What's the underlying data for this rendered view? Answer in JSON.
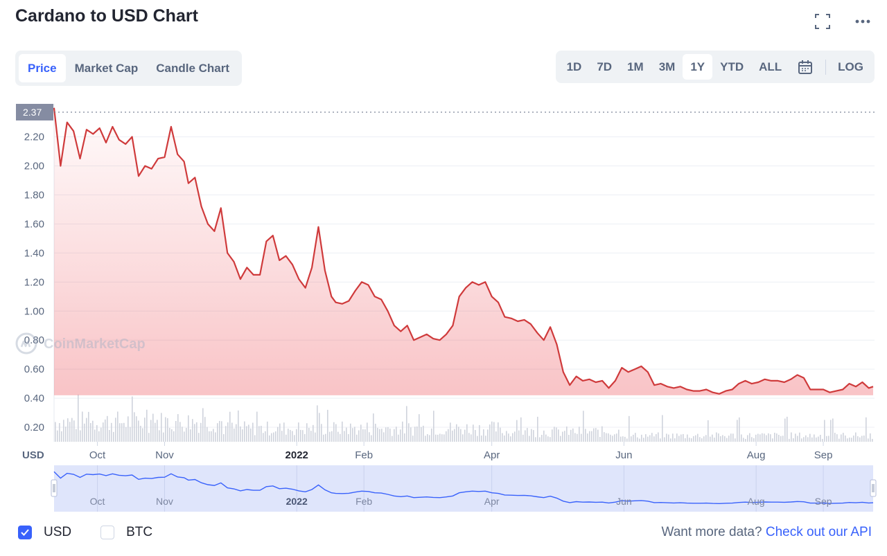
{
  "header": {
    "title": "Cardano to USD Chart"
  },
  "tabs": [
    {
      "label": "Price",
      "active": true
    },
    {
      "label": "Market Cap"
    },
    {
      "label": "Candle Chart"
    }
  ],
  "ranges": [
    {
      "label": "1D"
    },
    {
      "label": "7D"
    },
    {
      "label": "1M"
    },
    {
      "label": "3M"
    },
    {
      "label": "1Y",
      "active": true
    },
    {
      "label": "YTD"
    },
    {
      "label": "ALL"
    }
  ],
  "log_label": "LOG",
  "icons": {
    "fullscreen": "fullscreen-icon",
    "more": "more-icon",
    "calendar": "calendar-icon"
  },
  "colors": {
    "line": "#cf3a3b",
    "fill": "#ea3943",
    "accent": "#3861fb",
    "navigator": "#dde3fb",
    "navigator_line": "#3861fb"
  },
  "watermark": "CoinMarketCap",
  "currency_label": "USD",
  "legend": [
    {
      "label": "USD",
      "checked": true
    },
    {
      "label": "BTC",
      "checked": false
    }
  ],
  "footer": {
    "text": "Want more data?",
    "link": "Check out our API"
  },
  "chart_data": {
    "type": "area",
    "title": "Cardano to USD Chart",
    "ylabel": "USD",
    "ylim": [
      0.1,
      2.37
    ],
    "yticks": [
      0.2,
      0.4,
      0.6,
      0.8,
      1.0,
      1.2,
      1.4,
      1.6,
      1.8,
      2.0,
      2.2
    ],
    "ytick_labels": [
      "0.20",
      "0.40",
      "0.60",
      "0.80",
      "1.00",
      "1.20",
      "1.40",
      "1.60",
      "1.80",
      "2.00",
      "2.20"
    ],
    "current_label": "2.37",
    "xlim": [
      "2021-09-11",
      "2022-09-24"
    ],
    "xticks": [
      {
        "label": "Oct",
        "date": "2021-10-01"
      },
      {
        "label": "Nov",
        "date": "2021-11-01"
      },
      {
        "label": "2022",
        "date": "2022-01-01",
        "bold": true
      },
      {
        "label": "Feb",
        "date": "2022-02-01"
      },
      {
        "label": "Apr",
        "date": "2022-04-01"
      },
      {
        "label": "Jun",
        "date": "2022-06-01"
      },
      {
        "label": "Aug",
        "date": "2022-08-01"
      },
      {
        "label": "Sep",
        "date": "2022-09-01"
      }
    ],
    "grid": true,
    "series": [
      {
        "x": [
          "2021-09-11",
          "2021-09-14",
          "2021-09-17",
          "2021-09-20",
          "2021-09-23",
          "2021-09-26",
          "2021-09-29",
          "2021-10-02",
          "2021-10-05",
          "2021-10-08",
          "2021-10-11",
          "2021-10-14",
          "2021-10-17",
          "2021-10-20",
          "2021-10-23",
          "2021-10-26",
          "2021-10-29",
          "2021-11-01",
          "2021-11-04",
          "2021-11-07",
          "2021-11-10",
          "2021-11-12",
          "2021-11-15",
          "2021-11-18",
          "2021-11-21",
          "2021-11-24",
          "2021-11-27",
          "2021-11-30",
          "2021-12-03",
          "2021-12-06",
          "2021-12-09",
          "2021-12-12",
          "2021-12-15",
          "2021-12-18",
          "2021-12-21",
          "2021-12-24",
          "2021-12-27",
          "2021-12-30",
          "2022-01-02",
          "2022-01-05",
          "2022-01-08",
          "2022-01-11",
          "2022-01-14",
          "2022-01-17",
          "2022-01-19",
          "2022-01-22",
          "2022-01-25",
          "2022-01-28",
          "2022-01-31",
          "2022-02-03",
          "2022-02-06",
          "2022-02-09",
          "2022-02-12",
          "2022-02-15",
          "2022-02-18",
          "2022-02-21",
          "2022-02-24",
          "2022-02-27",
          "2022-03-02",
          "2022-03-05",
          "2022-03-08",
          "2022-03-11",
          "2022-03-14",
          "2022-03-17",
          "2022-03-20",
          "2022-03-23",
          "2022-03-26",
          "2022-03-29",
          "2022-04-01",
          "2022-04-04",
          "2022-04-07",
          "2022-04-10",
          "2022-04-13",
          "2022-04-16",
          "2022-04-19",
          "2022-04-22",
          "2022-04-25",
          "2022-04-28",
          "2022-05-01",
          "2022-05-04",
          "2022-05-07",
          "2022-05-10",
          "2022-05-13",
          "2022-05-16",
          "2022-05-19",
          "2022-05-22",
          "2022-05-25",
          "2022-05-28",
          "2022-05-31",
          "2022-06-03",
          "2022-06-06",
          "2022-06-09",
          "2022-06-12",
          "2022-06-15",
          "2022-06-18",
          "2022-06-21",
          "2022-06-24",
          "2022-06-27",
          "2022-06-30",
          "2022-07-03",
          "2022-07-06",
          "2022-07-09",
          "2022-07-12",
          "2022-07-15",
          "2022-07-18",
          "2022-07-21",
          "2022-07-24",
          "2022-07-27",
          "2022-07-30",
          "2022-08-02",
          "2022-08-05",
          "2022-08-08",
          "2022-08-11",
          "2022-08-14",
          "2022-08-17",
          "2022-08-20",
          "2022-08-23",
          "2022-08-26",
          "2022-08-29",
          "2022-09-01",
          "2022-09-04",
          "2022-09-07",
          "2022-09-10",
          "2022-09-13",
          "2022-09-16",
          "2022-09-19",
          "2022-09-22",
          "2022-09-24"
        ],
        "values": [
          2.4,
          2.0,
          2.3,
          2.24,
          2.05,
          2.25,
          2.22,
          2.26,
          2.16,
          2.27,
          2.18,
          2.15,
          2.2,
          1.93,
          2.0,
          1.98,
          2.05,
          2.06,
          2.27,
          2.08,
          2.03,
          1.88,
          1.92,
          1.72,
          1.6,
          1.55,
          1.71,
          1.4,
          1.34,
          1.22,
          1.3,
          1.25,
          1.25,
          1.48,
          1.52,
          1.35,
          1.38,
          1.32,
          1.22,
          1.16,
          1.3,
          1.58,
          1.28,
          1.1,
          1.06,
          1.05,
          1.07,
          1.14,
          1.2,
          1.18,
          1.1,
          1.08,
          1.0,
          0.9,
          0.86,
          0.9,
          0.8,
          0.82,
          0.84,
          0.81,
          0.8,
          0.84,
          0.9,
          1.1,
          1.16,
          1.2,
          1.18,
          1.2,
          1.1,
          1.06,
          0.96,
          0.95,
          0.93,
          0.94,
          0.91,
          0.85,
          0.8,
          0.89,
          0.77,
          0.58,
          0.49,
          0.55,
          0.52,
          0.53,
          0.51,
          0.52,
          0.47,
          0.52,
          0.61,
          0.58,
          0.6,
          0.62,
          0.58,
          0.49,
          0.5,
          0.48,
          0.47,
          0.48,
          0.46,
          0.45,
          0.45,
          0.46,
          0.44,
          0.43,
          0.45,
          0.46,
          0.5,
          0.52,
          0.5,
          0.51,
          0.53,
          0.52,
          0.52,
          0.51,
          0.53,
          0.56,
          0.54,
          0.46,
          0.46,
          0.46,
          0.44,
          0.45,
          0.46,
          0.5,
          0.48,
          0.51,
          0.47,
          0.48
        ]
      }
    ]
  }
}
